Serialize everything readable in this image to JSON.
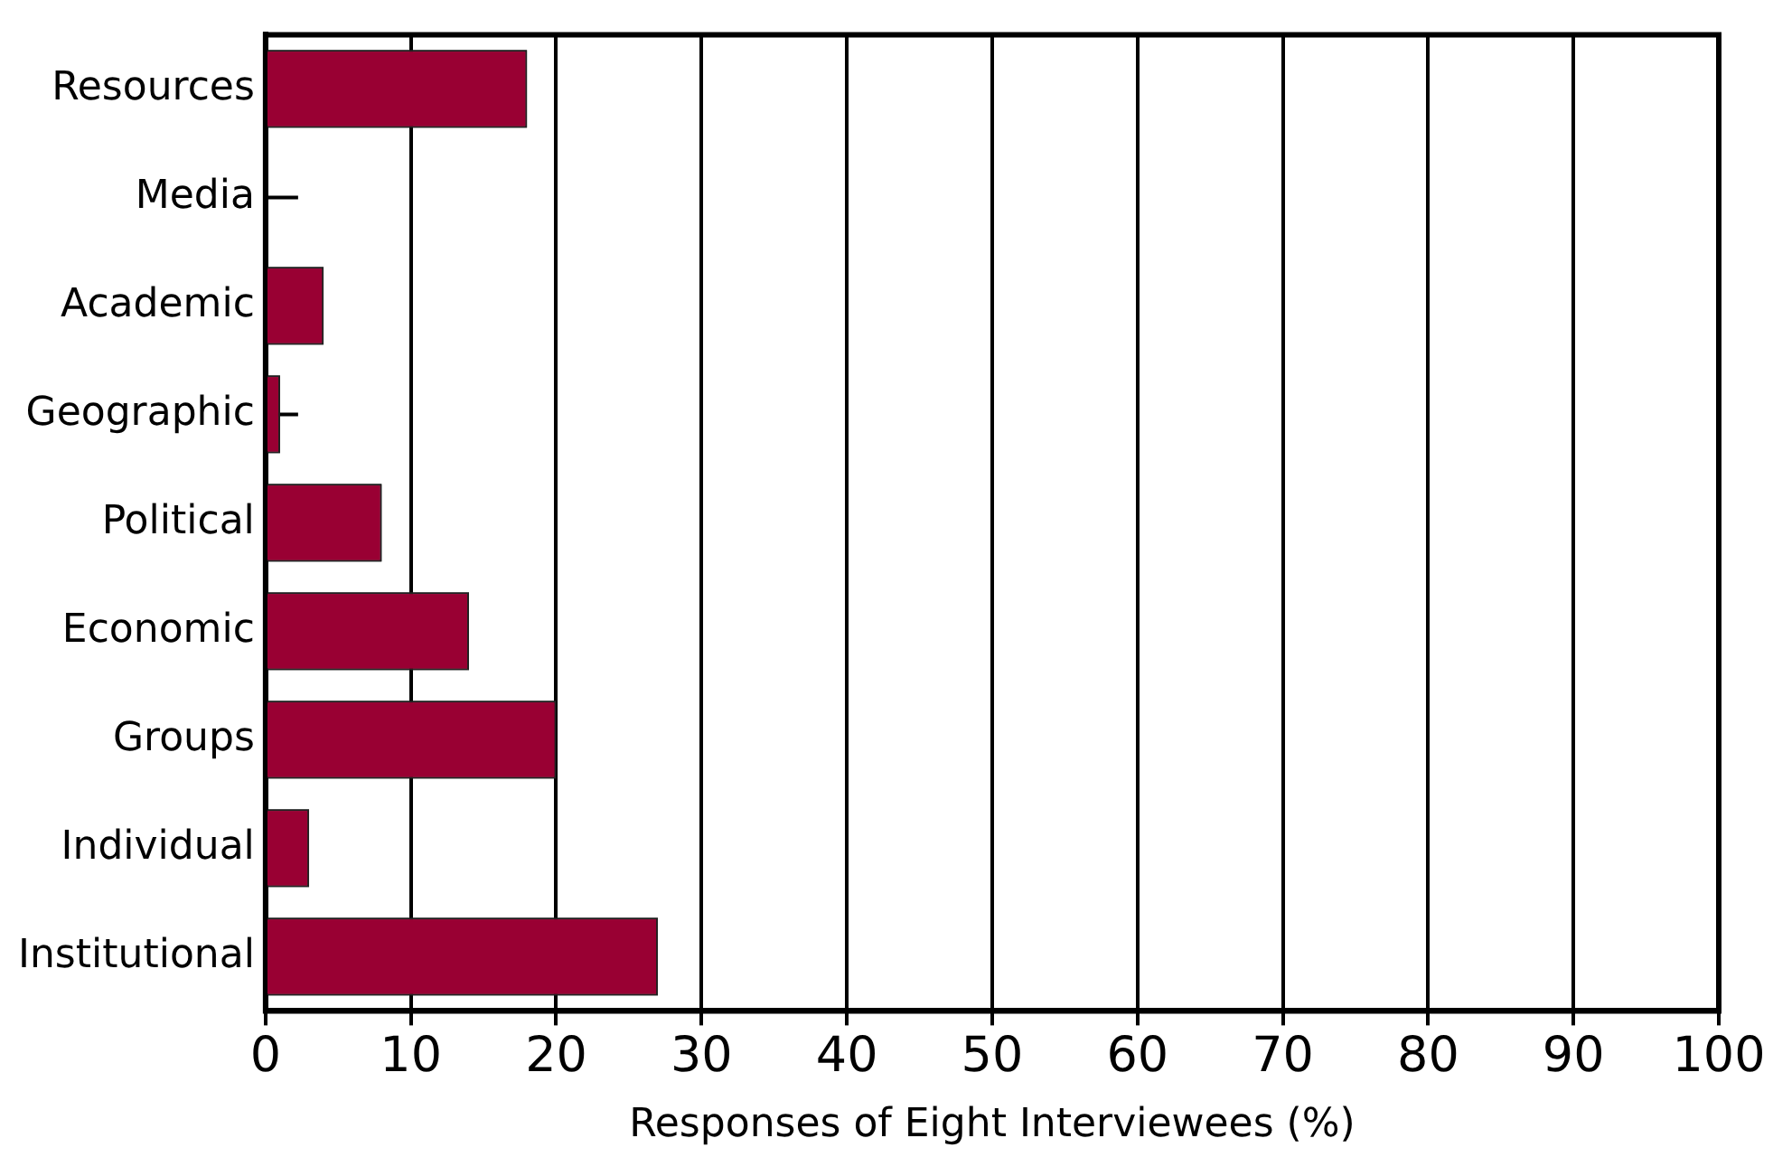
{
  "chart_data": {
    "type": "bar",
    "orientation": "horizontal",
    "xlabel": "Responses of Eight Interviewees (%)",
    "categories": [
      "Resources",
      "Media",
      "Academic",
      "Geographic",
      "Political",
      "Economic",
      "Groups",
      "Individual",
      "Institutional"
    ],
    "values": [
      18,
      0,
      4,
      1,
      8,
      14,
      20,
      3,
      27
    ],
    "color": "#990033",
    "xlim": [
      0,
      100
    ],
    "xticks": [
      0,
      10,
      20,
      30,
      40,
      50,
      60,
      70,
      80,
      90,
      100
    ],
    "grid": "x",
    "legend": false
  }
}
